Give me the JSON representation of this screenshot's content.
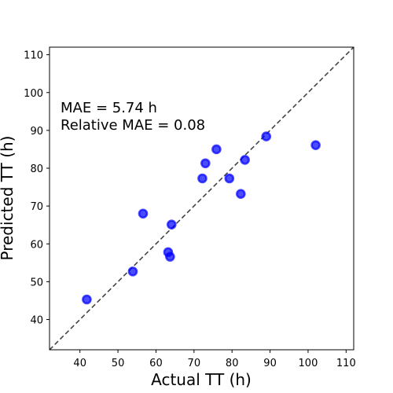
{
  "chart_data": {
    "type": "scatter",
    "xlabel": "Actual TT (h)",
    "ylabel": "Predicted TT (h)",
    "xlim": [
      32,
      112
    ],
    "ylim": [
      32,
      112
    ],
    "xticks": [
      40,
      50,
      60,
      70,
      80,
      90,
      100,
      110
    ],
    "yticks": [
      40,
      50,
      60,
      70,
      80,
      90,
      100,
      110
    ],
    "reference_line": "y = x (dashed)",
    "annotations": [
      "MAE = 5.74 h",
      "Relative MAE = 0.08"
    ],
    "point_color": "#0000ff",
    "line_color": "#444444",
    "points": [
      {
        "x": 41.8,
        "y": 45.3
      },
      {
        "x": 53.9,
        "y": 52.7
      },
      {
        "x": 56.6,
        "y": 68.0
      },
      {
        "x": 63.2,
        "y": 57.8
      },
      {
        "x": 63.7,
        "y": 56.6
      },
      {
        "x": 64.1,
        "y": 65.1
      },
      {
        "x": 72.2,
        "y": 77.3
      },
      {
        "x": 73.0,
        "y": 81.3
      },
      {
        "x": 75.9,
        "y": 85.0
      },
      {
        "x": 79.3,
        "y": 77.3
      },
      {
        "x": 82.3,
        "y": 73.2
      },
      {
        "x": 83.4,
        "y": 82.2
      },
      {
        "x": 89.0,
        "y": 88.4
      },
      {
        "x": 102.0,
        "y": 86.1
      }
    ]
  }
}
